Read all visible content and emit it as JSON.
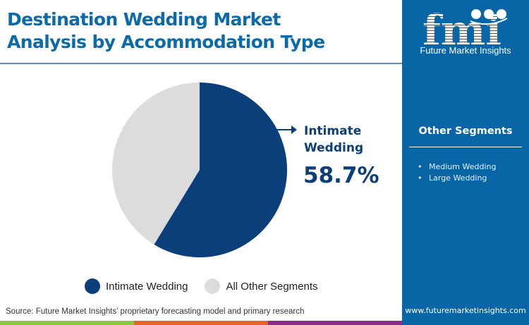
{
  "header": {
    "title_line1": "Destination Wedding Market",
    "title_line2": "Analysis by Accommodation Type"
  },
  "chart_data": {
    "type": "pie",
    "title": "Destination Wedding Market Analysis by Accommodation Type",
    "categories": [
      "Intimate Wedding",
      "All Other Segments"
    ],
    "values": [
      58.7,
      41.3
    ],
    "unit": "%",
    "colors": [
      "#0b3f7a",
      "#dcdcdc"
    ],
    "start_angle": "12 o'clock, clockwise",
    "annotation": {
      "label": "Intimate Wedding",
      "value": "58.7%"
    },
    "legend_position": "bottom"
  },
  "callout": {
    "label": "Intimate Wedding",
    "value": "58.7%"
  },
  "legend": {
    "items": [
      {
        "label": "Intimate Wedding",
        "color": "#0b3f7a"
      },
      {
        "label": "All Other Segments",
        "color": "#dcdcdc"
      }
    ]
  },
  "footer": {
    "source": "Source: Future Market Insights’ proprietary forecasting model and primary research",
    "bar_colors": [
      "#8cc63f",
      "#e8632a",
      "#8e2a8b"
    ]
  },
  "panel": {
    "logo_text": "fmi",
    "company": "Future Market Insights",
    "title": "Other Segments",
    "items": [
      "Medium Wedding",
      "Large Wedding"
    ],
    "url": "www.futuremarketinsights.com",
    "bg_color": "#0866a6"
  }
}
